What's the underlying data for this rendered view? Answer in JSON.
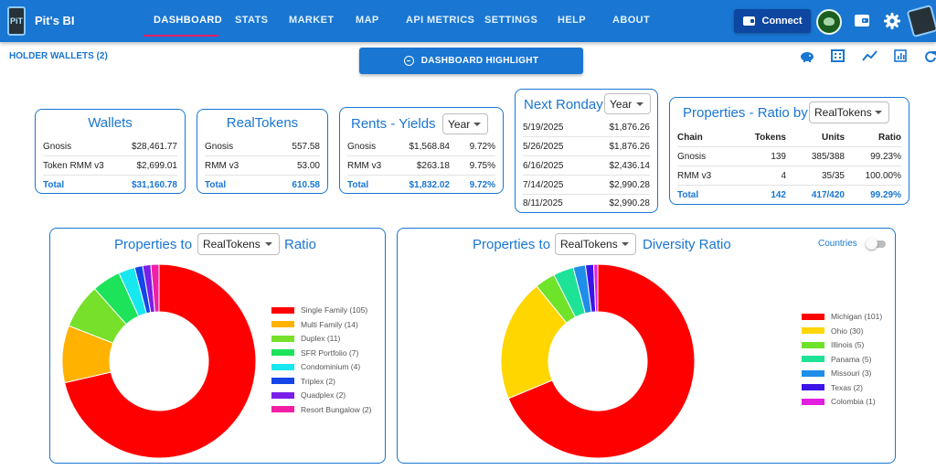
{
  "app": {
    "title": "Pit's BI",
    "logo_text": "PiT"
  },
  "nav": {
    "tabs": [
      "DASHBOARD",
      "STATS",
      "MARKET",
      "MAP",
      "API METRICS",
      "SETTINGS",
      "HELP",
      "ABOUT"
    ],
    "active": "DASHBOARD",
    "connect_label": "Connect"
  },
  "icons": {
    "wallet": "wallet-icon",
    "settings": "gear-icon",
    "piggy": "piggy-bank-icon",
    "building": "building-icon",
    "trend": "trend-chart-icon",
    "report": "report-icon",
    "refresh": "refresh-icon"
  },
  "subheader": {
    "holder_wallets": "HOLDER WALLETS (2)",
    "highlight_label": "DASHBOARD HIGHLIGHT"
  },
  "wallets": {
    "title": "Wallets",
    "rows": [
      {
        "label": "Gnosis",
        "value": "$28,461.77"
      },
      {
        "label": "Token RMM v3",
        "value": "$2,699.01"
      }
    ],
    "total": {
      "label": "Total",
      "value": "$31,160.78"
    }
  },
  "realtokens": {
    "title": "RealTokens",
    "rows": [
      {
        "label": "Gnosis",
        "value": "557.58"
      },
      {
        "label": "RMM v3",
        "value": "53.00"
      }
    ],
    "total": {
      "label": "Total",
      "value": "610.58"
    }
  },
  "rents": {
    "title": "Rents - Yields",
    "period": "Year",
    "rows": [
      {
        "label": "Gnosis",
        "value": "$1,568.84",
        "yield": "9.72%"
      },
      {
        "label": "RMM v3",
        "value": "$263.18",
        "yield": "9.75%"
      }
    ],
    "total": {
      "label": "Total",
      "value": "$1,832.02",
      "yield": "9.72%"
    }
  },
  "ronday": {
    "title": "Next Ronday",
    "period": "Year",
    "rows": [
      {
        "date": "5/19/2025",
        "value": "$1,876.26"
      },
      {
        "date": "5/26/2025",
        "value": "$1,876.26"
      },
      {
        "date": "6/16/2025",
        "value": "$2,436.14"
      },
      {
        "date": "7/14/2025",
        "value": "$2,990.28"
      },
      {
        "date": "8/11/2025",
        "value": "$2,990.28"
      }
    ]
  },
  "ratio": {
    "title": "Properties - Ratio by",
    "selector": "RealTokens",
    "headers": [
      "Chain",
      "Tokens",
      "Units",
      "Ratio"
    ],
    "rows": [
      {
        "chain": "Gnosis",
        "tokens": "139",
        "units": "385/388",
        "ratio": "99.23%"
      },
      {
        "chain": "RMM v3",
        "tokens": "4",
        "units": "35/35",
        "ratio": "100.00%"
      }
    ],
    "total": {
      "chain": "Total",
      "tokens": "142",
      "units": "417/420",
      "ratio": "99.29%"
    }
  },
  "charts": {
    "left": {
      "title_pre": "Properties to",
      "selector": "RealTokens",
      "title_post": "Ratio"
    },
    "right": {
      "title_pre": "Properties to",
      "selector": "RealTokens",
      "title_post": "Diversity Ratio",
      "toggle_label": "Countries"
    }
  },
  "chart_data": [
    {
      "type": "pie",
      "series": [
        {
          "label": "Single Family",
          "value": 105,
          "display": "Single Family (105)",
          "color": "#ff0000"
        },
        {
          "label": "Multi Family",
          "value": 14,
          "display": "Multi Family (14)",
          "color": "#ffb300"
        },
        {
          "label": "Duplex",
          "value": 11,
          "display": "Duplex (11)",
          "color": "#76e02b"
        },
        {
          "label": "SFR Portfolio",
          "value": 7,
          "display": "SFR Portfolio (7)",
          "color": "#1de35a"
        },
        {
          "label": "Condominium",
          "value": 4,
          "display": "Condominium (4)",
          "color": "#17e8f0"
        },
        {
          "label": "Triplex",
          "value": 2,
          "display": "Triplex (2)",
          "color": "#1446e8"
        },
        {
          "label": "Quadplex",
          "value": 2,
          "display": "Quadplex (2)",
          "color": "#7a1fe8"
        },
        {
          "label": "Resort Bungalow",
          "value": 2,
          "display": "Resort Bungalow (2)",
          "color": "#f21ea5"
        }
      ]
    },
    {
      "type": "pie",
      "series": [
        {
          "label": "Michigan",
          "value": 101,
          "display": "Michigan (101)",
          "color": "#ff0000"
        },
        {
          "label": "Ohio",
          "value": 30,
          "display": "Ohio (30)",
          "color": "#ffd600"
        },
        {
          "label": "Illinois",
          "value": 5,
          "display": "Illinois (5)",
          "color": "#6ee32a"
        },
        {
          "label": "Panama",
          "value": 5,
          "display": "Panama (5)",
          "color": "#1ee396"
        },
        {
          "label": "Missouri",
          "value": 3,
          "display": "Missouri (3)",
          "color": "#1e8ee8"
        },
        {
          "label": "Texas",
          "value": 2,
          "display": "Texas (2)",
          "color": "#3a14e8"
        },
        {
          "label": "Colombia",
          "value": 1,
          "display": "Colombia (1)",
          "color": "#e31ee0"
        }
      ]
    }
  ]
}
